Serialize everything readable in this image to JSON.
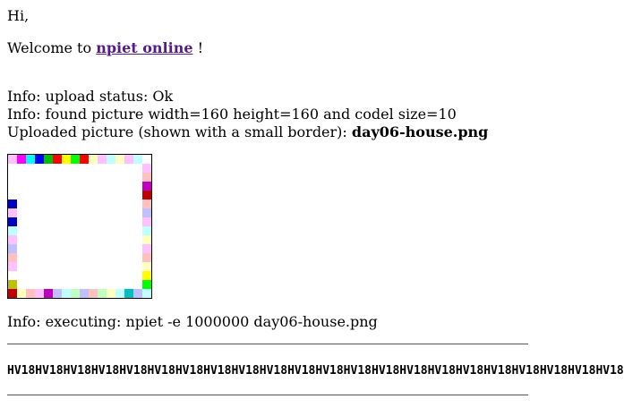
{
  "greeting": "Hi,",
  "welcome": {
    "prefix": "Welcome to",
    "link_text": "npiet online",
    "suffix": "!"
  },
  "info": {
    "upload_status": "Info: upload status: Ok",
    "picture_info": "Info: found picture width=160 height=160 and codel size=10",
    "uploaded_prefix": "Uploaded picture (shown with a small border):",
    "filename": "day06-house.png",
    "executing": "Info: executing: npiet -e 1000000 day06-house.png"
  },
  "output": {
    "text": "HV18HV18HV18HV18HV18HV18HV18HV18HV18HV18HV18HV18HV18HV18HV18HV18HV18HV18HV18HV18HV18HV18"
  },
  "picture": {
    "grid_size": 16,
    "colors": {
      "W": "#ffffff",
      "K": "#000000",
      "lr": "#ffc0c0",
      "ly": "#ffffc0",
      "lg": "#c0ffc0",
      "lc": "#c0ffff",
      "lb": "#c0c0ff",
      "lm": "#ffc0ff",
      "r": "#ff0000",
      "y": "#ffff00",
      "g": "#00ff00",
      "c": "#00ffff",
      "b": "#0000ff",
      "m": "#ff00ff",
      "dr": "#c00000",
      "dy": "#c0c000",
      "dg": "#00c000",
      "dc": "#00c0c0",
      "db": "#0000c0",
      "dm": "#c000c0"
    },
    "codels": [
      [
        "lm",
        "m",
        "c",
        "b",
        "dg",
        "r",
        "y",
        "g",
        "r",
        "ly",
        "lm",
        "lc",
        "ly",
        "lm",
        "lc",
        "W"
      ],
      [
        "W",
        "W",
        "W",
        "W",
        "W",
        "W",
        "W",
        "W",
        "W",
        "W",
        "W",
        "W",
        "W",
        "W",
        "W",
        "lm"
      ],
      [
        "W",
        "W",
        "W",
        "W",
        "W",
        "W",
        "W",
        "W",
        "W",
        "W",
        "W",
        "W",
        "W",
        "W",
        "W",
        "lr"
      ],
      [
        "W",
        "W",
        "W",
        "W",
        "W",
        "W",
        "W",
        "W",
        "W",
        "W",
        "W",
        "W",
        "W",
        "W",
        "W",
        "dm"
      ],
      [
        "W",
        "W",
        "W",
        "W",
        "W",
        "W",
        "W",
        "W",
        "W",
        "W",
        "W",
        "W",
        "W",
        "W",
        "W",
        "dr"
      ],
      [
        "db",
        "W",
        "W",
        "W",
        "W",
        "W",
        "W",
        "W",
        "W",
        "W",
        "W",
        "W",
        "W",
        "W",
        "W",
        "lr"
      ],
      [
        "lm",
        "W",
        "W",
        "W",
        "W",
        "W",
        "W",
        "W",
        "W",
        "W",
        "W",
        "W",
        "W",
        "W",
        "W",
        "lb"
      ],
      [
        "db",
        "W",
        "W",
        "W",
        "W",
        "W",
        "W",
        "W",
        "W",
        "W",
        "W",
        "W",
        "W",
        "W",
        "W",
        "lm"
      ],
      [
        "lc",
        "W",
        "W",
        "W",
        "W",
        "W",
        "W",
        "W",
        "W",
        "W",
        "W",
        "W",
        "W",
        "W",
        "W",
        "lc"
      ],
      [
        "lm",
        "W",
        "W",
        "W",
        "W",
        "W",
        "W",
        "W",
        "W",
        "W",
        "W",
        "W",
        "W",
        "W",
        "W",
        "ly"
      ],
      [
        "lb",
        "W",
        "W",
        "W",
        "W",
        "W",
        "W",
        "W",
        "W",
        "W",
        "W",
        "W",
        "W",
        "W",
        "W",
        "lm"
      ],
      [
        "lr",
        "W",
        "W",
        "W",
        "W",
        "W",
        "W",
        "W",
        "W",
        "W",
        "W",
        "W",
        "W",
        "W",
        "W",
        "lr"
      ],
      [
        "lm",
        "W",
        "W",
        "W",
        "W",
        "W",
        "W",
        "W",
        "W",
        "W",
        "W",
        "W",
        "W",
        "W",
        "W",
        "ly"
      ],
      [
        "W",
        "W",
        "W",
        "W",
        "W",
        "W",
        "W",
        "W",
        "W",
        "W",
        "W",
        "W",
        "W",
        "W",
        "W",
        "y"
      ],
      [
        "dy",
        "W",
        "W",
        "W",
        "W",
        "W",
        "W",
        "W",
        "W",
        "W",
        "W",
        "W",
        "W",
        "W",
        "W",
        "g"
      ],
      [
        "dr",
        "ly",
        "lr",
        "lm",
        "dm",
        "lb",
        "lc",
        "lg",
        "lb",
        "lr",
        "lg",
        "ly",
        "lc",
        "dc",
        "lb",
        "lc"
      ]
    ]
  }
}
